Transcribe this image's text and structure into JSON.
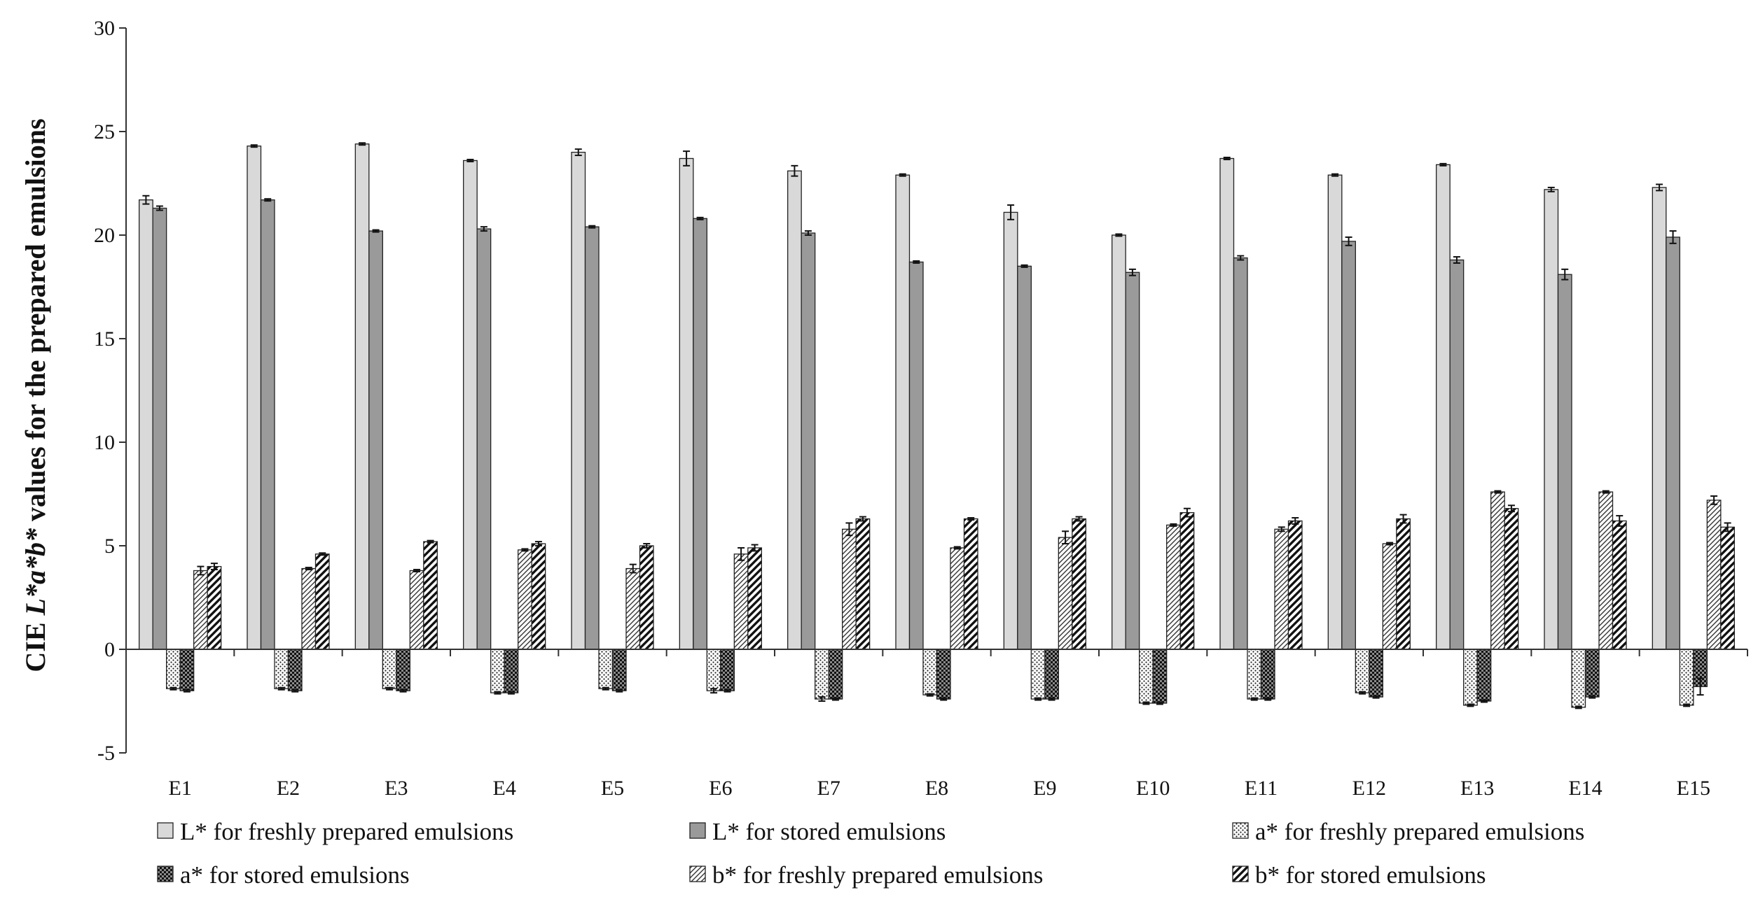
{
  "chart_data": {
    "type": "bar",
    "title": "",
    "xlabel": "",
    "ylabel": {
      "prefix": "CIE ",
      "italic": "L*a*b*",
      "suffix": " values for the prepared emulsions"
    },
    "ylim": [
      -5,
      30
    ],
    "yticks": [
      -5,
      0,
      5,
      10,
      15,
      20,
      25,
      30
    ],
    "grid": false,
    "legend_position": "bottom",
    "categories": [
      "E1",
      "E2",
      "E3",
      "E4",
      "E5",
      "E6",
      "E7",
      "E8",
      "E9",
      "E10",
      "E11",
      "E12",
      "E13",
      "E14",
      "E15"
    ],
    "series": [
      {
        "name": "L* for freshly prepared emulsions",
        "pattern": "light-gray",
        "values": [
          21.7,
          24.3,
          24.4,
          23.6,
          24.0,
          23.7,
          23.1,
          22.9,
          21.1,
          20.0,
          23.7,
          22.9,
          23.4,
          22.2,
          22.3
        ],
        "errors": [
          0.2,
          0.05,
          0.05,
          0.05,
          0.15,
          0.35,
          0.25,
          0.05,
          0.35,
          0.05,
          0.05,
          0.05,
          0.05,
          0.1,
          0.15
        ]
      },
      {
        "name": "L* for stored emulsions",
        "pattern": "dark-gray",
        "values": [
          21.3,
          21.7,
          20.2,
          20.3,
          20.4,
          20.8,
          20.1,
          18.7,
          18.5,
          18.2,
          18.9,
          19.7,
          18.8,
          18.1,
          19.9
        ],
        "errors": [
          0.1,
          0.05,
          0.05,
          0.1,
          0.05,
          0.05,
          0.1,
          0.05,
          0.05,
          0.15,
          0.1,
          0.2,
          0.15,
          0.25,
          0.3
        ]
      },
      {
        "name": "a* for freshly prepared emulsions",
        "pattern": "dots",
        "values": [
          -1.9,
          -1.9,
          -1.9,
          -2.1,
          -1.9,
          -2.0,
          -2.4,
          -2.2,
          -2.4,
          -2.6,
          -2.4,
          -2.1,
          -2.7,
          -2.8,
          -2.7
        ],
        "errors": [
          0.05,
          0.05,
          0.05,
          0.05,
          0.05,
          0.1,
          0.1,
          0.05,
          0.05,
          0.05,
          0.05,
          0.05,
          0.05,
          0.05,
          0.05
        ]
      },
      {
        "name": "a* for stored emulsions",
        "pattern": "checker",
        "values": [
          -2.0,
          -2.0,
          -2.0,
          -2.1,
          -2.0,
          -2.0,
          -2.4,
          -2.4,
          -2.4,
          -2.6,
          -2.4,
          -2.3,
          -2.5,
          -2.3,
          -1.8
        ],
        "errors": [
          0.05,
          0.05,
          0.05,
          0.05,
          0.05,
          0.05,
          0.05,
          0.05,
          0.05,
          0.05,
          0.05,
          0.05,
          0.05,
          0.05,
          0.4
        ]
      },
      {
        "name": "b* for freshly prepared emulsions",
        "pattern": "fine-diagonal",
        "values": [
          3.8,
          3.9,
          3.8,
          4.8,
          3.9,
          4.6,
          5.8,
          4.9,
          5.4,
          6.0,
          5.8,
          5.1,
          7.6,
          7.6,
          7.2
        ],
        "errors": [
          0.2,
          0.05,
          0.05,
          0.05,
          0.2,
          0.3,
          0.3,
          0.05,
          0.3,
          0.05,
          0.1,
          0.05,
          0.05,
          0.05,
          0.2
        ]
      },
      {
        "name": "b* for stored emulsions",
        "pattern": "thick-diagonal",
        "values": [
          4.0,
          4.6,
          5.2,
          5.1,
          5.0,
          4.9,
          6.3,
          6.3,
          6.3,
          6.6,
          6.2,
          6.3,
          6.8,
          6.2,
          5.9
        ],
        "errors": [
          0.15,
          0.05,
          0.05,
          0.1,
          0.1,
          0.15,
          0.1,
          0.05,
          0.1,
          0.2,
          0.15,
          0.2,
          0.15,
          0.25,
          0.2
        ]
      }
    ]
  }
}
